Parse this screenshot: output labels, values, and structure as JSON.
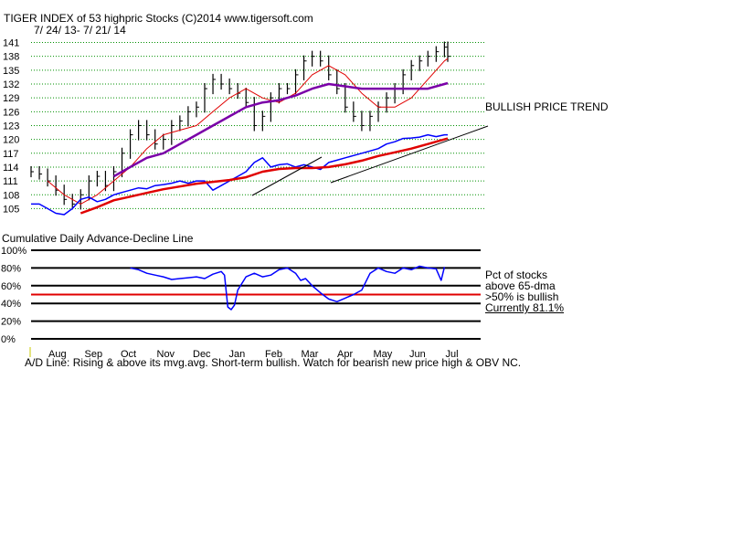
{
  "header": {
    "title": "TIGER INDEX of  53 highpric Stocks  (C)2014  www.tigersoft.com",
    "date_range": "7/ 24/ 13-  7/ 21/ 14"
  },
  "annotations": {
    "trend_label": "BULLISH PRICE TREND",
    "ad_line_label": "Cumulative Daily Advance-Decline Line",
    "pct_lines": [
      "Pct of stocks",
      "above 65-dma",
      ">50% is bullish",
      "Currently  81.1%"
    ],
    "footer": "A/D Line: Rising & above its mvg.avg. Short-term bullish. Watch for bearish new price high & OBV NC."
  },
  "colors": {
    "price_ma_short": "#e00000",
    "price_ma_long": "#7a00a8",
    "ad_line": "#0000ff",
    "ad_ma": "#e00000",
    "pct_line": "#0000ff",
    "threshold": "#e00000",
    "grid": "#009000"
  },
  "chart_data": [
    {
      "type": "line",
      "title": "TIGER INDEX of  53 highpric Stocks  (C)2014  www.tigersoft.com",
      "subtitle": "7/ 24/ 13-  7/ 21/ 14",
      "y_ticks": [
        141,
        138,
        135,
        132,
        129,
        126,
        123,
        120,
        117,
        114,
        111,
        108,
        105
      ],
      "ylim": [
        103.5,
        141.5
      ],
      "grid": true,
      "months": [
        "Aug",
        "Sep",
        "Oct",
        "Nov",
        "Dec",
        "Jan",
        "Feb",
        "Mar",
        "Apr",
        "May",
        "Jun",
        "Jul"
      ],
      "series": [
        {
          "style": "ohlc-bars",
          "x": [
            0,
            5,
            10,
            15,
            20,
            25,
            30,
            35,
            40,
            45,
            50,
            55,
            60,
            65,
            70,
            75,
            80,
            85,
            90,
            95,
            100,
            105,
            110,
            115,
            120,
            125,
            130,
            135,
            140,
            145,
            150,
            155,
            160,
            165,
            170,
            175,
            180,
            185,
            190,
            195,
            200,
            205,
            210,
            215,
            220,
            225,
            230,
            235,
            240,
            245,
            250,
            252
          ],
          "values": [
            113,
            112.5,
            111,
            109,
            107,
            106,
            108,
            111,
            112,
            110,
            113,
            117,
            121,
            123,
            121,
            119,
            120,
            123,
            124,
            126,
            127,
            131,
            133,
            132,
            131,
            130,
            128,
            123,
            125,
            129,
            131,
            131,
            134,
            137,
            138,
            137,
            134,
            131,
            127,
            125,
            123,
            125,
            127,
            129,
            131,
            134,
            136,
            137,
            138,
            139,
            140,
            138
          ]
        },
        {
          "style": "moving-average",
          "x": [
            10,
            20,
            30,
            40,
            50,
            60,
            70,
            80,
            90,
            100,
            110,
            120,
            130,
            140,
            150,
            160,
            170,
            180,
            190,
            200,
            210,
            220,
            230,
            240,
            250,
            252
          ],
          "values": [
            111,
            108,
            106,
            108,
            111,
            114,
            118,
            121,
            122,
            123,
            126,
            129,
            131,
            129,
            128,
            130,
            134,
            136,
            134,
            130,
            127,
            127,
            129,
            133,
            137,
            137.5
          ]
        },
        {
          "style": "moving-average-long",
          "x": [
            50,
            60,
            70,
            80,
            90,
            100,
            110,
            120,
            130,
            140,
            150,
            160,
            170,
            180,
            190,
            200,
            210,
            220,
            230,
            240,
            250,
            252
          ],
          "values": [
            112,
            114,
            116,
            117,
            119,
            121,
            123,
            125,
            127,
            128,
            128.5,
            129.5,
            131,
            132,
            131.5,
            131,
            131,
            131,
            131,
            131,
            132,
            132.2
          ]
        },
        {
          "style": "ad-line",
          "x": [
            0,
            5,
            10,
            15,
            20,
            25,
            30,
            35,
            40,
            45,
            50,
            55,
            60,
            65,
            70,
            75,
            80,
            85,
            90,
            95,
            100,
            105,
            110,
            115,
            120,
            125,
            130,
            135,
            140,
            145,
            150,
            155,
            160,
            165,
            170,
            175,
            180,
            185,
            190,
            195,
            200,
            205,
            210,
            215,
            220,
            225,
            230,
            235,
            240,
            245,
            250,
            252
          ],
          "values": [
            106,
            106,
            105,
            104,
            103.7,
            105,
            107,
            107.5,
            106.5,
            107,
            108,
            108.5,
            109,
            109.5,
            109.3,
            110,
            110.2,
            110.5,
            111,
            110.5,
            111,
            111,
            109,
            110,
            111,
            112,
            113,
            115,
            116,
            114,
            114.5,
            114.7,
            114,
            114.5,
            114,
            113.5,
            115,
            115.5,
            116,
            116.5,
            117,
            117.5,
            118,
            119,
            119.5,
            120.2,
            120.3,
            120.5,
            121,
            120.6,
            121,
            121
          ]
        },
        {
          "style": "ad-moving-average",
          "x": [
            30,
            40,
            50,
            60,
            70,
            80,
            90,
            100,
            110,
            120,
            130,
            140,
            150,
            160,
            170,
            180,
            190,
            200,
            210,
            220,
            230,
            240,
            250,
            252
          ],
          "values": [
            104,
            105.3,
            106.8,
            107.6,
            108.4,
            109.2,
            109.8,
            110.4,
            110.8,
            111.2,
            111.8,
            113,
            113.6,
            113.8,
            113.8,
            114,
            114.6,
            115.4,
            116.4,
            117.2,
            118,
            119,
            120,
            120.2
          ]
        }
      ]
    },
    {
      "type": "line",
      "title": "Cumulative Daily Advance-Decline Line",
      "y_ticks": [
        "100%",
        "80%",
        "60%",
        "40%",
        "20%",
        "0%"
      ],
      "ylim": [
        0,
        100
      ],
      "threshold": 50,
      "x": [
        60,
        65,
        70,
        75,
        80,
        85,
        90,
        95,
        100,
        105,
        110,
        115,
        117,
        119,
        121,
        123,
        125,
        130,
        135,
        140,
        145,
        150,
        155,
        160,
        163,
        166,
        170,
        175,
        180,
        185,
        190,
        195,
        200,
        205,
        210,
        215,
        220,
        225,
        230,
        235,
        240,
        245,
        248,
        250
      ],
      "values": [
        80,
        78,
        74,
        72,
        70,
        67,
        68,
        69,
        70,
        68,
        73,
        76,
        72,
        36,
        33,
        38,
        55,
        70,
        74,
        70,
        72,
        78,
        80,
        74,
        66,
        68,
        60,
        52,
        45,
        42,
        46,
        50,
        55,
        74,
        80,
        76,
        74,
        80,
        78,
        82,
        80,
        79,
        66,
        81.1
      ]
    }
  ]
}
